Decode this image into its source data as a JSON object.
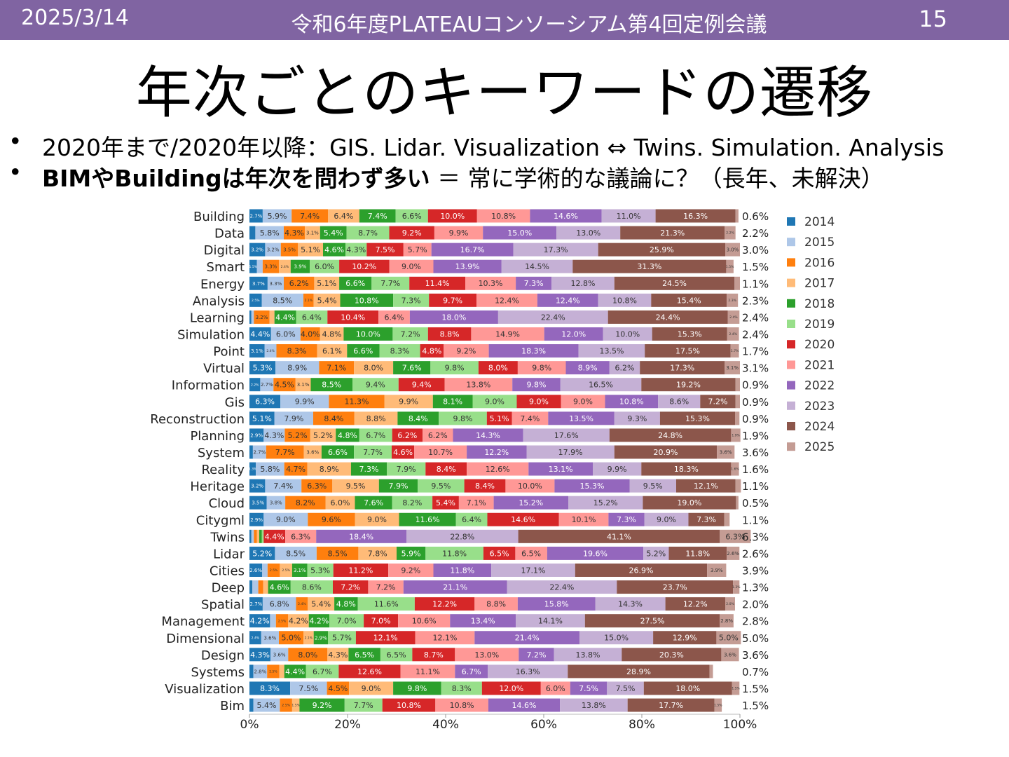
{
  "header": {
    "date": "2025/3/14",
    "meeting": "令和6年度PLATEAUコンソーシアム第4回定例会議",
    "page_number": "15"
  },
  "slide": {
    "title": "年次ごとのキーワードの遷移",
    "bullets": [
      {
        "bold": "",
        "text": "2020年まで/2020年以降：GIS. Lidar. Visualization ⇔ Twins. Simulation. Analysis"
      },
      {
        "bold": "BIMやBuildingは年次を問わず多い",
        "text": " ＝ 常に学術的な議論に？（長年、未解決）"
      }
    ]
  },
  "colors": {
    "header_bg": "#8064a2"
  },
  "chart_data": {
    "type": "bar",
    "orientation": "horizontal",
    "stacked": "100%",
    "title": "",
    "xlabel": "",
    "ylabel": "",
    "xlim": [
      0,
      100
    ],
    "x_ticks": [
      "0%",
      "20%",
      "40%",
      "60%",
      "80%",
      "100%"
    ],
    "legend_position": "right",
    "categories": [
      "Building",
      "Data",
      "Digital",
      "Smart",
      "Energy",
      "Analysis",
      "Learning",
      "Simulation",
      "Point",
      "Virtual",
      "Information",
      "Gis",
      "Reconstruction",
      "Planning",
      "System",
      "Reality",
      "Heritage",
      "Cloud",
      "Citygml",
      "Twins",
      "Lidar",
      "Cities",
      "Deep",
      "Spatial",
      "Management",
      "Dimensional",
      "Design",
      "Systems",
      "Visualization",
      "Bim"
    ],
    "series": [
      {
        "name": "2014",
        "color": "#1f77b4",
        "values": [
          2.7,
          1.2,
          3.2,
          1.5,
          3.7,
          2.5,
          0.4,
          4.4,
          3.1,
          5.3,
          2.2,
          6.3,
          5.1,
          2.9,
          0.7,
          1.3,
          3.2,
          3.5,
          2.9,
          0.4,
          5.2,
          2.6,
          0.6,
          2.7,
          4.2,
          2.4,
          4.3,
          0.8,
          8.3,
          0.8
        ]
      },
      {
        "name": "2015",
        "color": "#aec7e8",
        "values": [
          5.9,
          5.8,
          3.2,
          1.2,
          3.3,
          8.5,
          0.5,
          6.0,
          2.4,
          8.9,
          2.7,
          9.9,
          7.9,
          4.3,
          2.7,
          5.8,
          7.4,
          3.8,
          9.0,
          0.5,
          8.5,
          1.1,
          1.2,
          6.8,
          1.2,
          3.6,
          3.6,
          2.8,
          7.5,
          5.4
        ]
      },
      {
        "name": "2016",
        "color": "#ff7f0e",
        "values": [
          7.4,
          4.3,
          3.5,
          3.3,
          6.2,
          2.1,
          3.2,
          4.0,
          8.3,
          7.1,
          4.5,
          11.3,
          8.4,
          5.2,
          7.7,
          4.7,
          6.3,
          8.2,
          9.6,
          0.6,
          8.5,
          2.5,
          1.0,
          2.4,
          2.5,
          5.0,
          8.0,
          2.5,
          4.5,
          2.5
        ]
      },
      {
        "name": "2017",
        "color": "#ffbb78",
        "values": [
          6.4,
          3.1,
          5.1,
          2.4,
          5.1,
          5.4,
          1.0,
          4.8,
          6.1,
          8.0,
          3.1,
          9.9,
          8.8,
          5.2,
          3.6,
          8.9,
          9.5,
          6.0,
          9.0,
          0.5,
          7.8,
          2.5,
          1.0,
          5.4,
          4.2,
          2.1,
          4.3,
          1.0,
          9.0,
          1.5
        ]
      },
      {
        "name": "2018",
        "color": "#2ca02c",
        "values": [
          7.4,
          5.4,
          4.6,
          3.9,
          6.6,
          10.8,
          4.4,
          10.0,
          6.6,
          7.6,
          8.5,
          8.1,
          8.4,
          4.8,
          6.6,
          7.3,
          7.9,
          7.6,
          11.6,
          0.5,
          5.9,
          3.1,
          4.6,
          4.8,
          4.2,
          2.9,
          6.5,
          4.4,
          9.8,
          9.2
        ]
      },
      {
        "name": "2019",
        "color": "#98df8a",
        "values": [
          6.6,
          8.7,
          4.3,
          6.0,
          7.7,
          7.3,
          6.4,
          7.2,
          8.3,
          9.8,
          9.4,
          9.0,
          9.8,
          6.7,
          7.7,
          7.9,
          9.5,
          8.2,
          6.4,
          0.4,
          11.8,
          5.3,
          8.6,
          11.6,
          7.0,
          5.7,
          6.5,
          6.7,
          8.3,
          7.7
        ]
      },
      {
        "name": "2020",
        "color": "#d62728",
        "values": [
          10.0,
          9.2,
          7.5,
          10.2,
          11.4,
          9.7,
          10.4,
          8.8,
          4.8,
          8.0,
          9.4,
          9.0,
          5.1,
          6.2,
          4.6,
          8.4,
          8.4,
          5.4,
          14.6,
          4.4,
          6.5,
          11.2,
          7.2,
          12.2,
          7.0,
          12.1,
          8.7,
          12.6,
          12.0,
          10.8
        ]
      },
      {
        "name": "2021",
        "color": "#ff9896",
        "values": [
          10.8,
          9.9,
          5.7,
          9.0,
          10.3,
          12.4,
          6.4,
          14.9,
          9.2,
          9.8,
          13.8,
          9.0,
          7.4,
          6.2,
          10.7,
          12.6,
          10.0,
          7.1,
          10.1,
          6.3,
          6.5,
          9.2,
          7.2,
          8.8,
          10.6,
          12.1,
          13.0,
          11.1,
          6.0,
          10.8
        ]
      },
      {
        "name": "2022",
        "color": "#9467bd",
        "values": [
          14.6,
          15.0,
          16.7,
          13.9,
          7.3,
          12.4,
          18.0,
          12.0,
          18.3,
          8.9,
          9.8,
          10.8,
          13.5,
          14.3,
          12.2,
          13.1,
          15.3,
          15.2,
          7.3,
          18.4,
          19.6,
          11.8,
          21.1,
          15.8,
          13.4,
          21.4,
          7.2,
          6.7,
          7.5,
          14.6
        ]
      },
      {
        "name": "2023",
        "color": "#c5b0d5",
        "values": [
          11.0,
          13.0,
          17.3,
          14.5,
          12.8,
          10.8,
          22.4,
          10.0,
          13.5,
          6.2,
          16.5,
          8.6,
          9.3,
          17.6,
          17.9,
          9.9,
          9.5,
          15.2,
          9.0,
          22.8,
          5.2,
          17.1,
          22.4,
          14.3,
          14.1,
          15.0,
          13.8,
          16.3,
          7.5,
          13.8
        ]
      },
      {
        "name": "2024",
        "color": "#8c564b",
        "values": [
          16.3,
          21.3,
          25.9,
          31.3,
          24.5,
          15.4,
          24.4,
          15.3,
          17.5,
          17.3,
          19.2,
          7.2,
          15.3,
          24.8,
          20.9,
          18.3,
          12.1,
          19.0,
          7.3,
          41.1,
          11.8,
          26.9,
          23.7,
          12.2,
          27.5,
          12.9,
          20.3,
          28.9,
          18.0,
          17.7
        ]
      },
      {
        "name": "2025",
        "color": "#c49c94",
        "values": [
          0.6,
          2.2,
          3.0,
          1.5,
          1.1,
          2.3,
          2.4,
          2.4,
          1.7,
          3.1,
          0.9,
          0.9,
          0.9,
          1.9,
          3.6,
          1.6,
          1.1,
          0.5,
          1.1,
          6.3,
          2.6,
          3.9,
          1.3,
          2.0,
          2.8,
          5.0,
          3.6,
          0.7,
          1.5,
          1.5
        ]
      }
    ],
    "total_labels": [
      "0.6%",
      "2.2%",
      "3.0%",
      "1.5%",
      "1.1%",
      "2.3%",
      "2.4%",
      "2.4%",
      "1.7%",
      "3.1%",
      "0.9%",
      "0.9%",
      "0.9%",
      "1.9%",
      "3.6%",
      "1.6%",
      "1.1%",
      "0.5%",
      "1.1%",
      "6.3%",
      "2.6%",
      "3.9%",
      "1.3%",
      "2.0%",
      "2.8%",
      "5.0%",
      "3.6%",
      "0.7%",
      "1.5%",
      "1.5%"
    ]
  }
}
